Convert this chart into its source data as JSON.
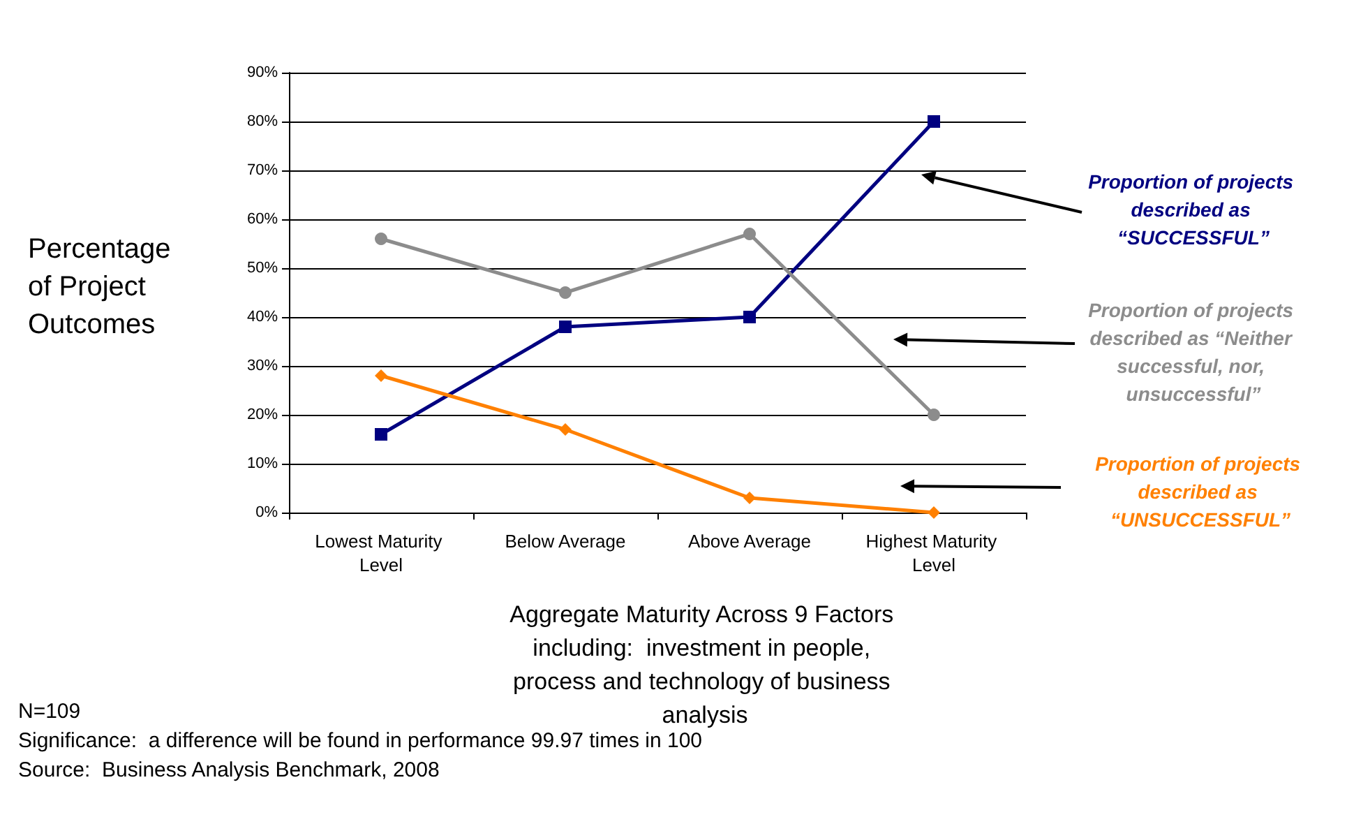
{
  "chart_data": {
    "type": "line",
    "xlabel": "Aggregate Maturity Across 9 Factors including:  investment in people, process and technology of business analysis",
    "ylabel": "Percentage of Project Outcomes",
    "categories": [
      "Lowest Maturity Level",
      "Below Average",
      "Above Average",
      "Highest Maturity Level"
    ],
    "series": [
      {
        "name": "Proportion of projects described as “SUCCESSFUL”",
        "color": "#000080",
        "marker": "square",
        "values": [
          16,
          38,
          40,
          80
        ]
      },
      {
        "name": "Proportion of projects described as “Neither successful, nor, unsuccessful”",
        "color": "#8c8c8c",
        "marker": "circle",
        "values": [
          56,
          45,
          57,
          20
        ]
      },
      {
        "name": "Proportion of projects described as “UNSUCCESSFUL”",
        "color": "#ff8000",
        "marker": "diamond",
        "values": [
          28,
          17,
          3,
          0
        ]
      }
    ],
    "ylim": [
      0,
      90
    ],
    "yticks": [
      {
        "value": 0,
        "label": "0%"
      },
      {
        "value": 10,
        "label": "10%"
      },
      {
        "value": 20,
        "label": "20%"
      },
      {
        "value": 30,
        "label": "30%"
      },
      {
        "value": 40,
        "label": "40%"
      },
      {
        "value": 50,
        "label": "50%"
      },
      {
        "value": 60,
        "label": "60%"
      },
      {
        "value": 70,
        "label": "70%"
      },
      {
        "value": 80,
        "label": "80%"
      },
      {
        "value": 90,
        "label": "90%"
      }
    ],
    "grid": "y",
    "legend": false,
    "annotations": [
      "N=109",
      "Significance:  a difference will be found in performance 99.97 times in 100",
      "Source:  Business Analysis Benchmark, 2008"
    ]
  }
}
